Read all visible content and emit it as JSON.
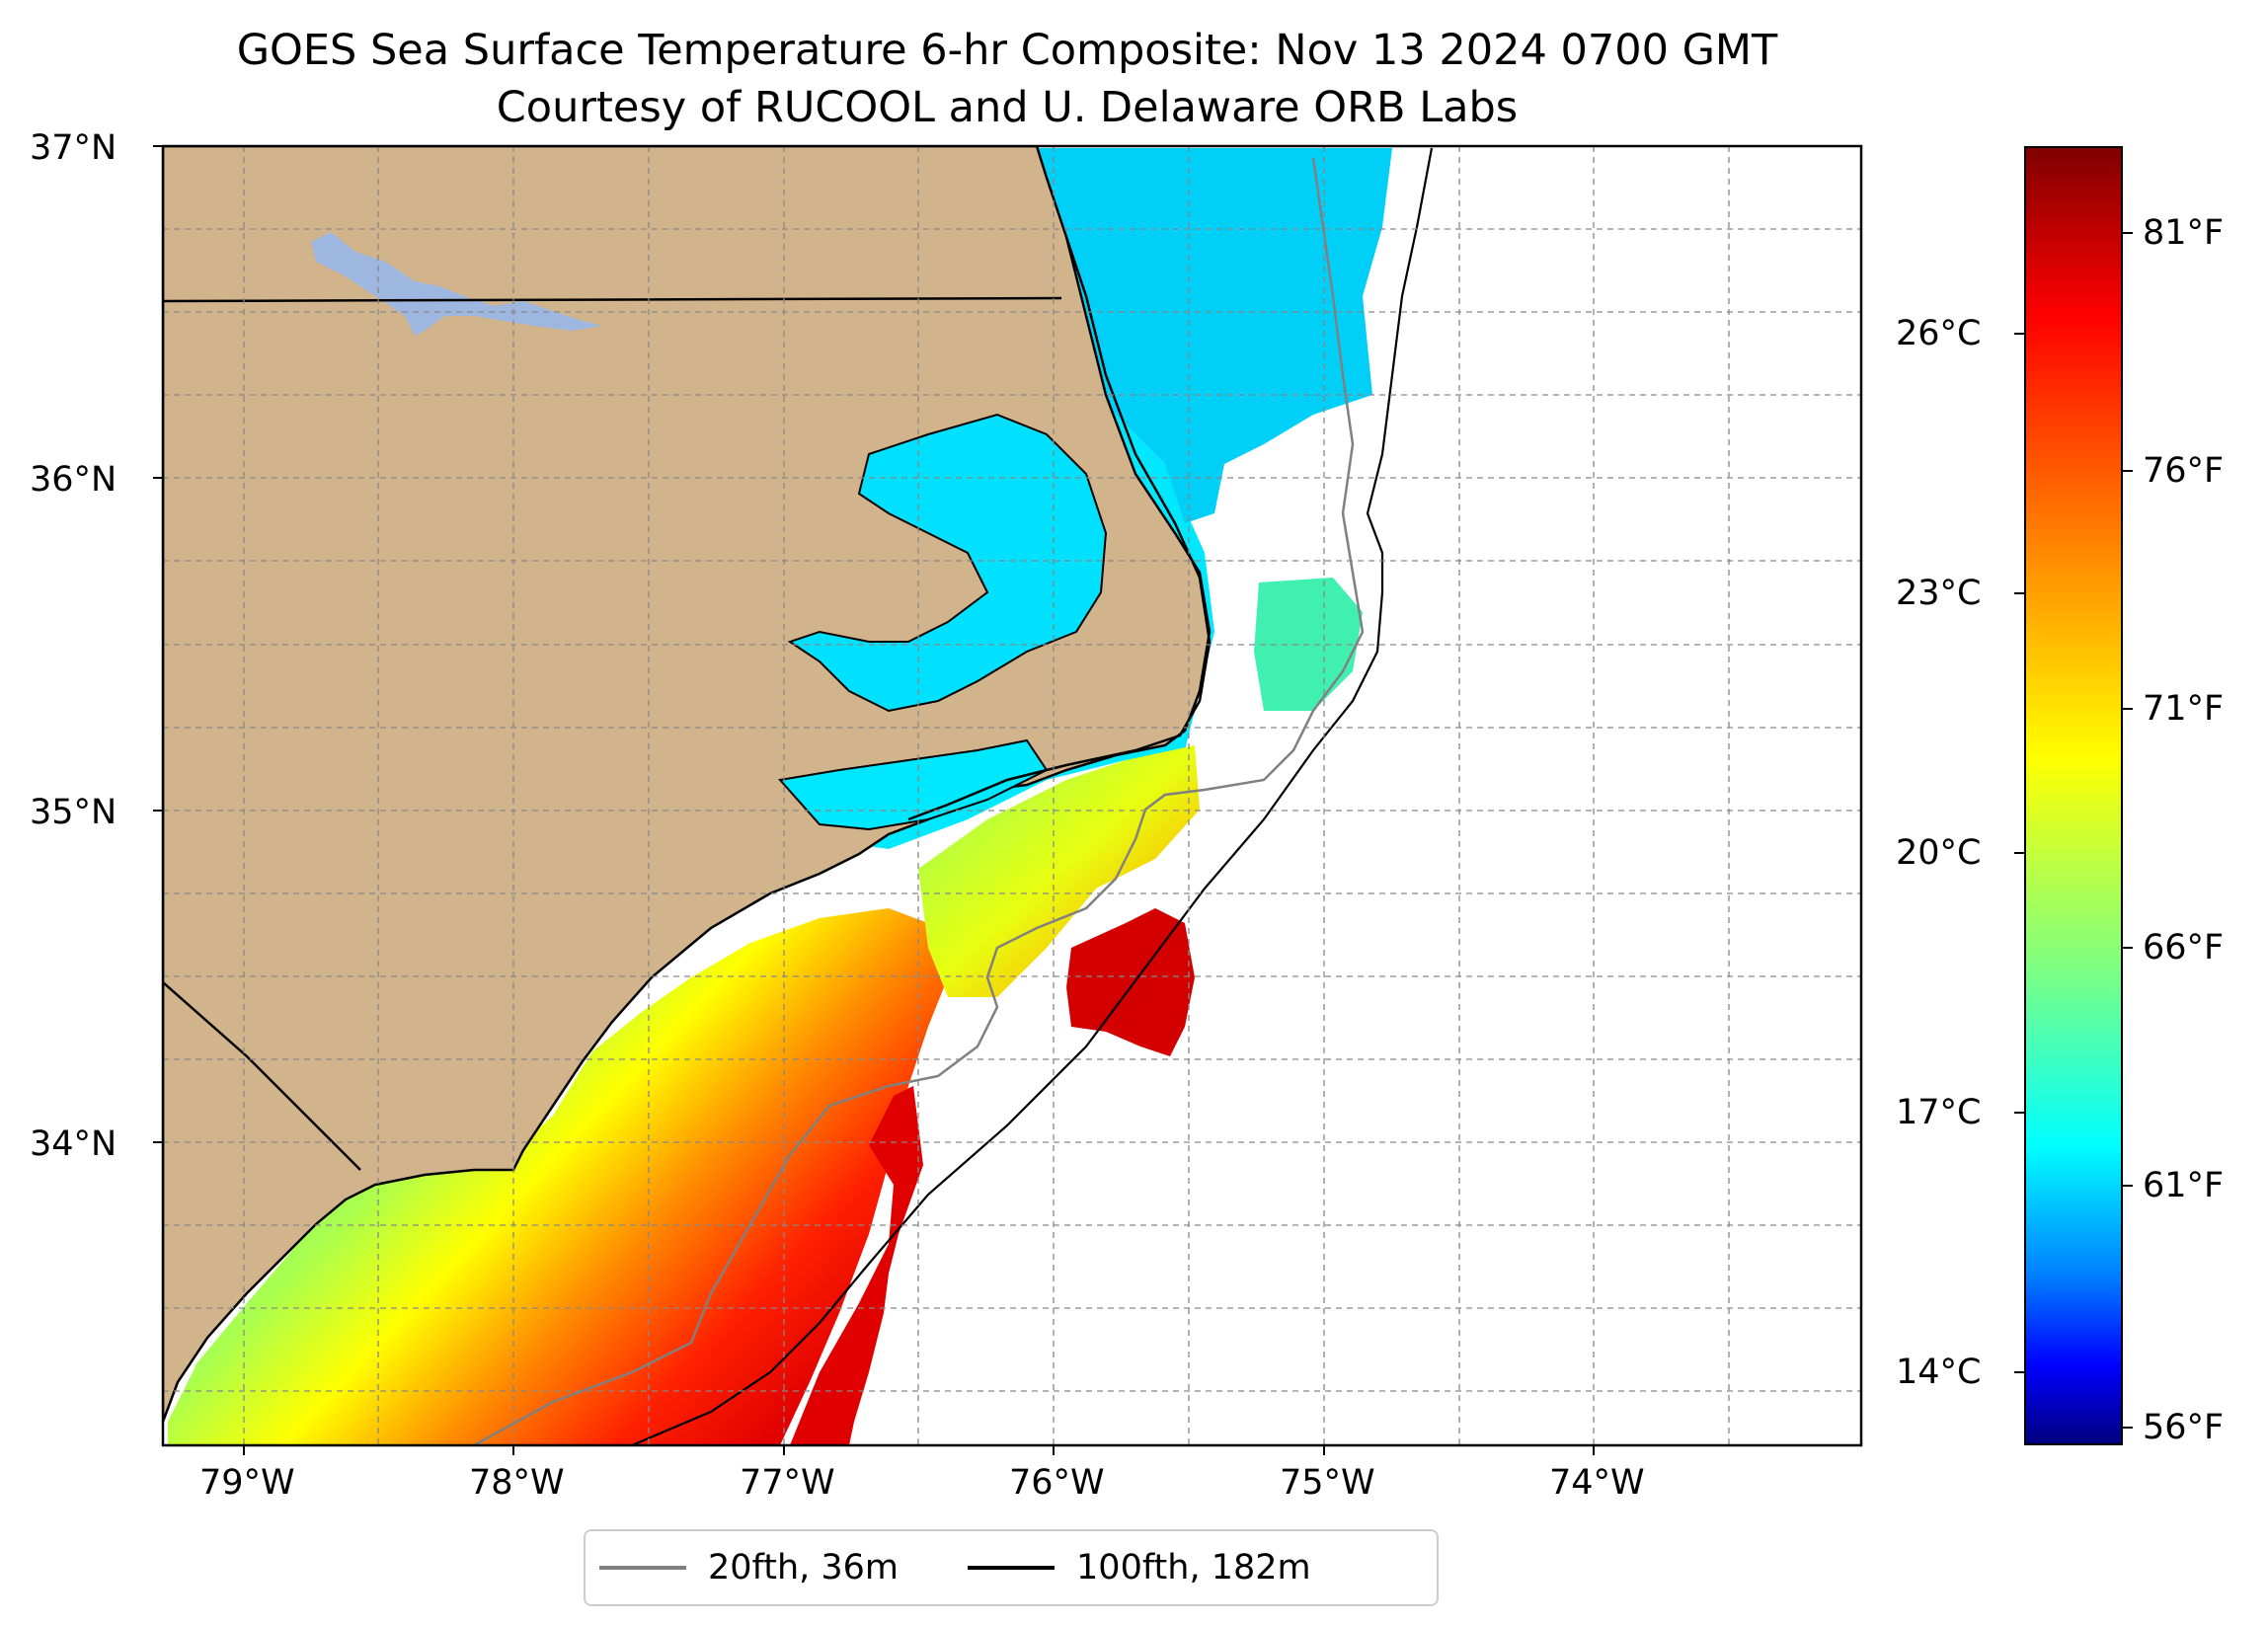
{
  "title": {
    "line1": "GOES Sea Surface Temperature 6-hr Composite: Nov 13 2024 0700 GMT",
    "line2": "Courtesy of RUCOOL and U. Delaware ORB Labs"
  },
  "map": {
    "lat_range": [
      33.1,
      37.0
    ],
    "lon_range": [
      -79.3,
      -73.0
    ],
    "lat_labels": [
      "37°N",
      "36°N",
      "35°N",
      "34°N"
    ],
    "lon_labels": [
      "79°W",
      "78°W",
      "77°W",
      "76°W",
      "75°W",
      "74°W"
    ],
    "land_color": "#d2b48c",
    "lake_color": "#9eb7e0",
    "grid": "dashed"
  },
  "legend": {
    "items": [
      {
        "label": "20fth, 36m",
        "color": "#808080"
      },
      {
        "label": "100fth, 182m",
        "color": "#000000"
      }
    ]
  },
  "colorbar": {
    "celsius_ticks": [
      "26°C",
      "23°C",
      "20°C",
      "17°C",
      "14°C"
    ],
    "fahrenheit_ticks": [
      "81°F",
      "76°F",
      "71°F",
      "66°F",
      "61°F",
      "56°F"
    ],
    "colormap": "jet"
  }
}
